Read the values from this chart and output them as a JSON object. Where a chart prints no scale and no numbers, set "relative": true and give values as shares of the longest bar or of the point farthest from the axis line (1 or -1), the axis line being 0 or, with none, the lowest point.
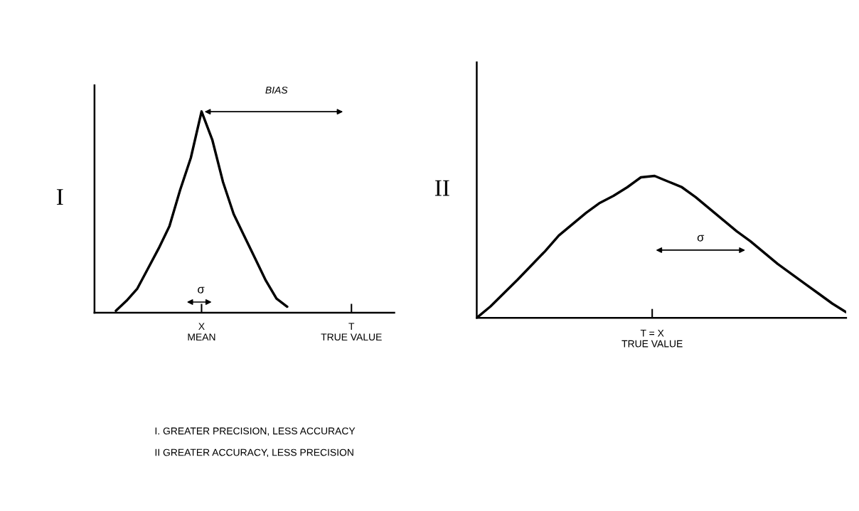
{
  "chart_data": [
    {
      "type": "line",
      "relative": true,
      "ylabel": "I",
      "categories": [
        null,
        null,
        null,
        null,
        null,
        null,
        null,
        null,
        null,
        null,
        "X\nMEAN",
        null,
        null,
        null,
        null,
        null,
        null,
        null,
        null,
        null,
        null,
        null,
        null,
        null,
        "T\nTRUE VALUE",
        null,
        null,
        null,
        null
      ],
      "series": [
        {
          "color": "#000000",
          "values": [
            null,
            null,
            0.01,
            0.06,
            0.12,
            0.22,
            0.32,
            0.43,
            0.61,
            0.77,
            1,
            0.86,
            0.65,
            0.49,
            0.38,
            0.27,
            0.16,
            0.07,
            0.03,
            null,
            null,
            null,
            null,
            null,
            null,
            null,
            null,
            null,
            null
          ]
        }
      ],
      "annotations": [
        "BIAS",
        "σ",
        "I. GREATER PRECISION, LESS ACCURACY",
        "II GREATER ACCURACY, LESS PRECISION"
      ]
    },
    {
      "type": "line",
      "relative": true,
      "ylabel": "II",
      "categories": [
        null,
        null,
        null,
        null,
        null,
        null,
        null,
        null,
        null,
        null,
        null,
        null,
        null,
        null,
        null,
        null,
        null,
        null,
        null,
        null,
        null,
        null,
        null,
        null,
        null,
        null,
        null,
        null
      ],
      "series": [
        {
          "color": "#000000",
          "values": [
            0,
            0.08,
            0.175,
            0.27,
            0.37,
            0.47,
            0.58,
            0.66,
            0.74,
            0.81,
            0.86,
            0.92,
            0.99,
            1,
            0.96,
            0.92,
            0.85,
            0.77,
            0.69,
            0.61,
            0.54,
            0.46,
            0.38,
            0.31,
            0.24,
            0.17,
            0.1,
            0.04
          ]
        }
      ],
      "annotations": [
        "σ",
        "T = X\nTRUE VALUE"
      ]
    }
  ]
}
